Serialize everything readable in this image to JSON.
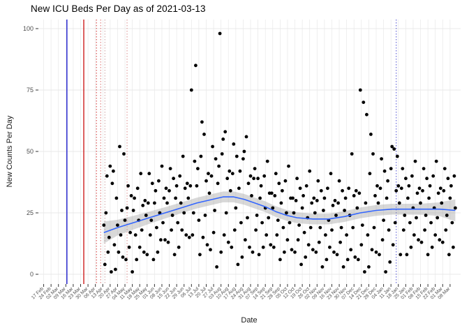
{
  "page": {
    "title": "New ICU Beds Per Day as of 2021-03-13"
  },
  "chart_data": {
    "type": "scatter",
    "title": "New ICU Beds Per Day as of 2021-03-13",
    "xlabel": "Date",
    "ylabel": "New Counts Per Day",
    "ylim": [
      0,
      100
    ],
    "y_ticks": [
      0,
      25,
      50,
      75,
      100
    ],
    "x_range_days": [
      -5,
      395
    ],
    "x_tick_interval_days": 7,
    "x_tick_labels": [
      "17 Feb",
      "24 Feb",
      "02 Mar",
      "09 Mar",
      "16 Mar",
      "23 Mar",
      "30 Mar",
      "06 Apr",
      "13 Apr",
      "20 Apr",
      "27 Apr",
      "04 May",
      "11 May",
      "18 May",
      "25 May",
      "01 Jun",
      "08 Jun",
      "15 Jun",
      "22 Jun",
      "29 Jun",
      "06 Jul",
      "13 Jul",
      "20 Jul",
      "27 Jul",
      "03 Aug",
      "10 Aug",
      "17 Aug",
      "24 Aug",
      "31 Aug",
      "07 Sep",
      "14 Sep",
      "21 Sep",
      "28 Sep",
      "05 Oct",
      "12 Oct",
      "19 Oct",
      "26 Oct",
      "02 Nov",
      "09 Nov",
      "16 Nov",
      "23 Nov",
      "30 Nov",
      "07 Dec",
      "14 Dec",
      "21 Dec",
      "28 Dec",
      "04 Jan",
      "11 Jan",
      "18 Jan",
      "25 Jan",
      "01 Feb",
      "08 Feb",
      "15 Feb",
      "22 Feb",
      "01 Mar",
      "08 Mar"
    ],
    "grid": true,
    "legend": "none",
    "colors": {
      "point": "#000000",
      "smooth": "#3366ff",
      "band": "#999999",
      "grid": "#e8e8e8",
      "axis_text": "#4d4d4d",
      "tick": "#333333"
    },
    "points": {
      "start_day": 57,
      "daily_values": [
        20,
        4,
        25,
        40,
        9,
        15,
        44,
        1,
        37,
        42,
        12,
        2,
        31,
        20,
        9,
        52,
        16,
        26,
        7,
        49,
        22,
        6,
        27,
        36,
        11,
        17,
        32,
        1,
        26,
        31,
        16,
        6,
        35,
        22,
        11,
        41,
        18,
        28,
        9,
        30,
        24,
        8,
        29,
        41,
        16,
        22,
        37,
        6,
        29,
        34,
        19,
        9,
        38,
        25,
        14,
        44,
        21,
        31,
        14,
        35,
        29,
        13,
        34,
        43,
        18,
        24,
        39,
        8,
        31,
        36,
        21,
        11,
        40,
        29,
        18,
        48,
        25,
        35,
        16,
        37,
        31,
        15,
        36,
        75,
        16,
        25,
        46,
        85,
        36,
        43,
        22,
        8,
        48,
        62,
        15,
        57,
        24,
        38,
        12,
        41,
        33,
        10,
        40,
        52,
        17,
        26,
        47,
        3,
        37,
        44,
        98,
        9,
        49,
        55,
        16,
        58,
        25,
        39,
        13,
        42,
        34,
        11,
        41,
        53,
        18,
        27,
        48,
        4,
        35,
        42,
        21,
        7,
        47,
        50,
        14,
        56,
        23,
        37,
        11,
        40,
        32,
        9,
        39,
        43,
        18,
        24,
        39,
        8,
        31,
        36,
        21,
        11,
        40,
        27,
        16,
        46,
        23,
        33,
        12,
        33,
        27,
        11,
        32,
        41,
        16,
        22,
        37,
        6,
        29,
        34,
        19,
        9,
        38,
        25,
        14,
        44,
        21,
        31,
        10,
        31,
        25,
        9,
        30,
        39,
        14,
        20,
        35,
        4,
        27,
        32,
        17,
        7,
        36,
        23,
        12,
        42,
        19,
        29,
        10,
        31,
        25,
        9,
        30,
        38,
        13,
        19,
        34,
        3,
        26,
        31,
        16,
        6,
        35,
        22,
        11,
        41,
        18,
        28,
        9,
        30,
        24,
        8,
        29,
        38,
        13,
        19,
        34,
        3,
        26,
        31,
        16,
        6,
        35,
        24,
        10,
        49,
        19,
        32,
        7,
        34,
        27,
        6,
        33,
        75,
        12,
        20,
        70,
        1,
        29,
        65,
        16,
        3,
        41,
        57,
        10,
        49,
        19,
        32,
        9,
        36,
        29,
        8,
        35,
        47,
        14,
        22,
        42,
        1,
        31,
        38,
        18,
        5,
        43,
        52,
        12,
        51,
        21,
        34,
        48,
        36,
        29,
        8,
        35,
        43,
        18,
        24,
        39,
        8,
        31,
        36,
        21,
        11,
        40,
        27,
        16,
        46,
        23,
        33,
        14,
        35,
        29,
        13,
        34,
        43,
        18,
        24,
        39,
        8,
        31,
        36,
        21,
        11,
        40,
        27,
        16,
        46,
        23,
        33,
        14,
        35,
        29,
        13,
        34,
        43,
        18,
        24,
        39,
        8,
        31,
        36,
        21,
        11,
        40,
        27
      ]
    },
    "smooth_line": {
      "x_days": [
        57,
        70,
        85,
        100,
        115,
        130,
        145,
        160,
        170,
        180,
        190,
        200,
        210,
        220,
        230,
        240,
        255,
        270,
        285,
        300,
        315,
        330,
        345,
        360,
        375,
        390
      ],
      "y": [
        17,
        19,
        21,
        23,
        25,
        27,
        29,
        30.5,
        31.5,
        31.5,
        30.5,
        29,
        27.5,
        25.5,
        24,
        23,
        22.5,
        22.5,
        23.5,
        25,
        26,
        26.5,
        26.5,
        26.5,
        26.5,
        26
      ],
      "band_half_width": [
        4.5,
        3.2,
        2.8,
        2.5,
        2.3,
        2.2,
        2.2,
        2.2,
        2.2,
        2.2,
        2.2,
        2.2,
        2.2,
        2.2,
        2.2,
        2.2,
        2.2,
        2.2,
        2.2,
        2.2,
        2.2,
        2.2,
        2.2,
        2.3,
        2.8,
        4.5
      ]
    },
    "vlines": [
      {
        "day": 22,
        "color": "#2b2bd0",
        "style": "solid"
      },
      {
        "day": 38,
        "color": "#d02b2b",
        "style": "solid"
      },
      {
        "day": 50,
        "color": "#d02b2b",
        "style": "dotted"
      },
      {
        "day": 54,
        "color": "#d96a6a",
        "style": "dotted"
      },
      {
        "day": 58,
        "color": "#c9a0a0",
        "style": "dotted"
      },
      {
        "day": 79,
        "color": "#d98a8a",
        "style": "dotted"
      },
      {
        "day": 334,
        "color": "#4a4ad0",
        "style": "dotted"
      }
    ]
  }
}
